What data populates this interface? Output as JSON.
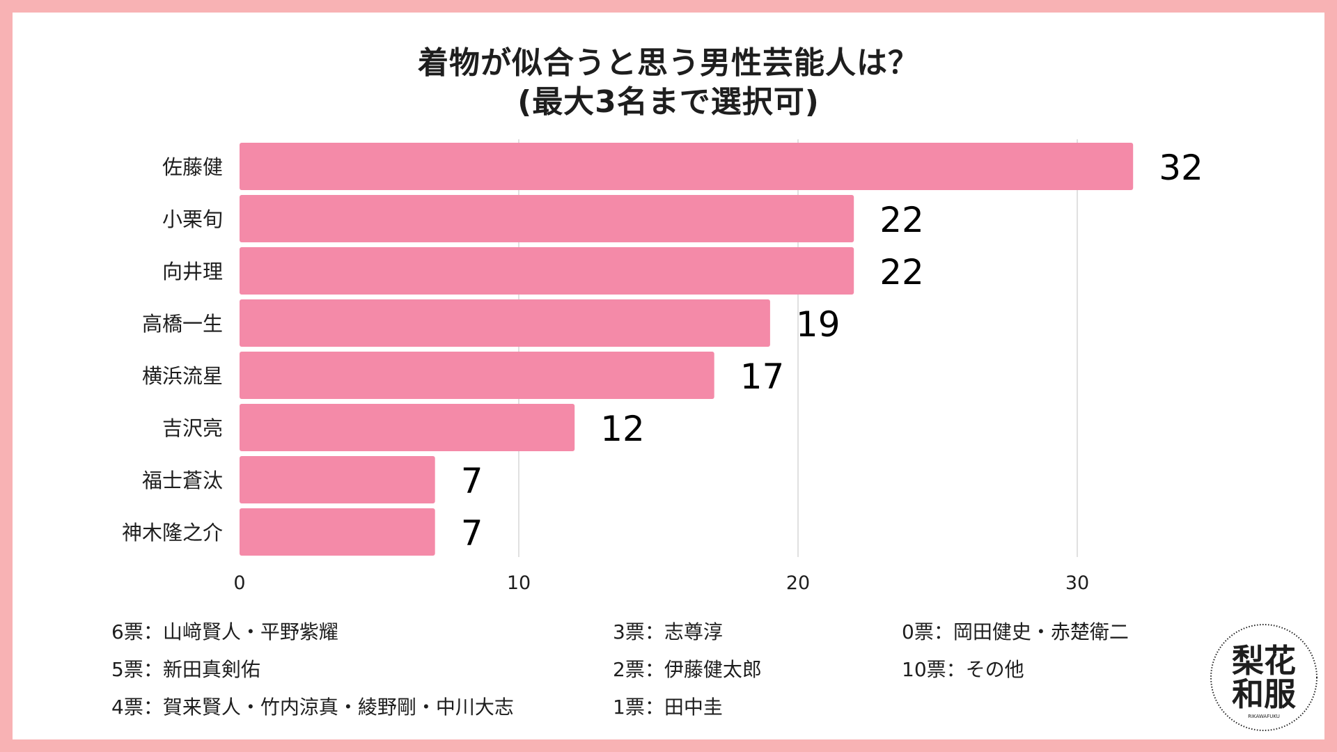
{
  "title_line1": "着物が似合うと思う男性芸能人は？",
  "title_line2": "(最大3名まで選択可)",
  "colors": {
    "background": "#f8b2b4",
    "bar": "#f48aa8",
    "text": "#1e1e1e",
    "grid": "#d6d6d6"
  },
  "chart_data": {
    "type": "bar",
    "orientation": "horizontal",
    "title": "着物が似合うと思う男性芸能人は？ (最大3名まで選択可)",
    "categories": [
      "佐藤健",
      "小栗旬",
      "向井理",
      "高橋一生",
      "横浜流星",
      "吉沢亮",
      "福士蒼汰",
      "神木隆之介"
    ],
    "values": [
      32,
      22,
      22,
      19,
      17,
      12,
      7,
      7
    ],
    "xlim": [
      0,
      35
    ],
    "xticks": [
      0,
      10,
      20,
      30
    ],
    "xlabel": "",
    "ylabel": "",
    "grid": true
  },
  "legend_notes": [
    "6票：山﨑賢人・平野紫耀",
    "5票：新田真剣佑",
    "4票：賀来賢人・竹内涼真・綾野剛・中川大志",
    "3票：志尊淳",
    "2票：伊藤健太郎",
    "1票：田中圭",
    "0票：岡田健史・赤楚衛二",
    "10票：その他"
  ],
  "logo": {
    "line1": "梨花",
    "line2": "和服",
    "sub": "RIKAWAFUKU"
  }
}
